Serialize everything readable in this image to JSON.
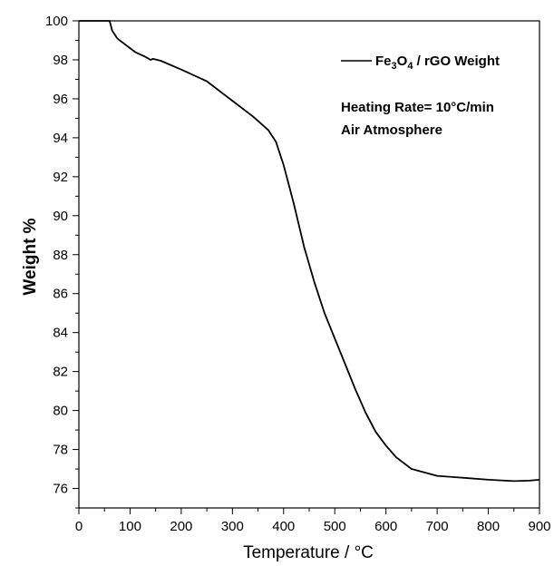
{
  "chart_data": {
    "type": "line",
    "xlabel": "Temperature / °C",
    "ylabel": "Weight %",
    "xlim": [
      0,
      900
    ],
    "ylim": [
      75,
      100
    ],
    "x_ticks": [
      0,
      100,
      200,
      300,
      400,
      500,
      600,
      700,
      800,
      900
    ],
    "y_ticks": [
      76,
      78,
      80,
      82,
      84,
      86,
      88,
      90,
      92,
      94,
      96,
      98,
      100
    ],
    "grid": false,
    "legend_position": "top-right",
    "legend": {
      "base": "Fe",
      "sub1": "3",
      "mid": "O",
      "sub2": "4",
      "rest": " / rGO Weight"
    },
    "annotations": [
      "Heating Rate= 10°C/min",
      "Air Atmosphere"
    ],
    "series": [
      {
        "name": "Fe3O4 / rGO Weight",
        "color": "#000000",
        "x": [
          0,
          60,
          65,
          75,
          90,
          110,
          130,
          140,
          145,
          160,
          200,
          250,
          300,
          340,
          370,
          385,
          400,
          420,
          440,
          460,
          480,
          500,
          520,
          540,
          560,
          580,
          600,
          620,
          650,
          700,
          750,
          800,
          850,
          880,
          900
        ],
        "y": [
          100,
          100,
          99.5,
          99.1,
          98.8,
          98.4,
          98.15,
          98.0,
          98.05,
          97.95,
          97.5,
          96.9,
          95.9,
          95.1,
          94.4,
          93.8,
          92.6,
          90.6,
          88.4,
          86.6,
          85.0,
          83.7,
          82.4,
          81.1,
          79.9,
          78.9,
          78.2,
          77.6,
          77.0,
          76.65,
          76.55,
          76.45,
          76.38,
          76.4,
          76.45
        ]
      }
    ]
  }
}
